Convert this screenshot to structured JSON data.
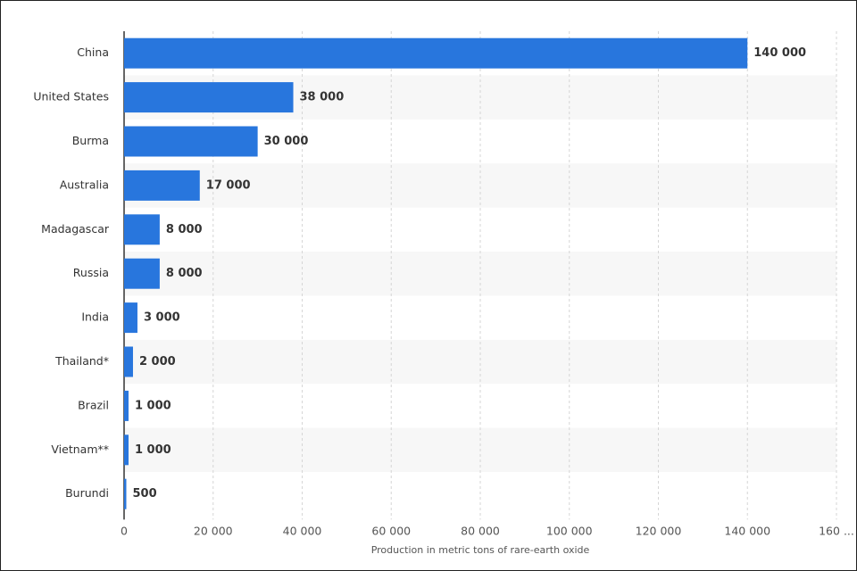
{
  "chart_data": {
    "type": "barh",
    "categories": [
      "China",
      "United States",
      "Burma",
      "Australia",
      "Madagascar",
      "Russia",
      "India",
      "Thailand*",
      "Brazil",
      "Vietnam**",
      "Burundi"
    ],
    "values": [
      140000,
      38000,
      30000,
      17000,
      8000,
      8000,
      3000,
      2000,
      1000,
      1000,
      500
    ],
    "value_labels": [
      "140 000",
      "38 000",
      "30 000",
      "17 000",
      "8 000",
      "8 000",
      "3 000",
      "2 000",
      "1 000",
      "1 000",
      "500"
    ],
    "color": "#2876dd",
    "xlim": [
      0,
      160000
    ],
    "xticks": [
      0,
      {
        "value": 20000,
        "label": "20 000"
      },
      {
        "value": 40000,
        "label": "40 000"
      },
      {
        "value": 60000,
        "label": "60 000"
      },
      {
        "value": 80000,
        "label": "80 000"
      },
      {
        "value": 100000,
        "label": "100 000"
      },
      {
        "value": 120000,
        "label": "120 000"
      },
      {
        "value": 140000,
        "label": "140 000"
      },
      {
        "value": 160000,
        "label": "160 ..."
      }
    ],
    "x_label": "Production in metric tons of rare-earth oxide",
    "grid": true
  }
}
